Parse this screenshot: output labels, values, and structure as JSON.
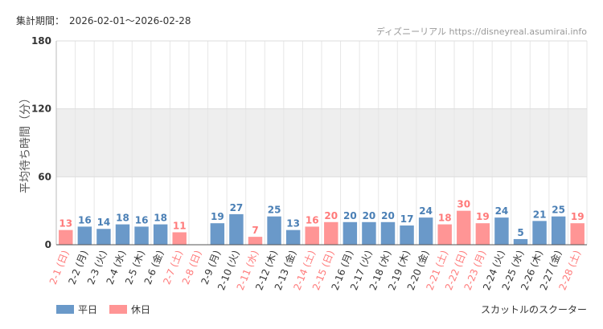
{
  "header": {
    "period_label": "集計期間：",
    "period": "2026-02-01～2026-02-28",
    "source": "ディズニーリアル https://disneyreal.asumirai.info"
  },
  "footer": {
    "attraction": "スカットルのスクーター"
  },
  "legend": {
    "weekday": "平日",
    "holiday": "休日"
  },
  "colors": {
    "weekday": "#6a99c9",
    "holiday": "#ff9595",
    "weekday_text": "#4a7fb5",
    "holiday_text": "#ff7a7a",
    "band": "#eeeeee",
    "grid": "#e6e6e6"
  },
  "chart_data": {
    "type": "bar",
    "ylabel": "平均待ち時間（分）",
    "ylim": [
      0,
      180
    ],
    "yticks": [
      0,
      60,
      120,
      180
    ],
    "band": [
      60,
      120
    ],
    "categories": [
      "2-1 (日)",
      "2-2 (月)",
      "2-3 (火)",
      "2-4 (水)",
      "2-5 (木)",
      "2-6 (金)",
      "2-7 (土)",
      "2-8 (日)",
      "2-9 (月)",
      "2-10 (火)",
      "2-11 (水)",
      "2-12 (木)",
      "2-13 (金)",
      "2-14 (土)",
      "2-15 (日)",
      "2-16 (月)",
      "2-17 (火)",
      "2-18 (水)",
      "2-19 (木)",
      "2-20 (金)",
      "2-21 (土)",
      "2-22 (日)",
      "2-23 (月)",
      "2-24 (火)",
      "2-25 (水)",
      "2-26 (木)",
      "2-27 (金)",
      "2-28 (土)"
    ],
    "values": [
      13,
      16,
      14,
      18,
      16,
      18,
      11,
      null,
      19,
      27,
      7,
      25,
      13,
      16,
      20,
      20,
      20,
      20,
      17,
      24,
      18,
      30,
      19,
      24,
      5,
      21,
      25,
      19
    ],
    "holiday": [
      true,
      false,
      false,
      false,
      false,
      false,
      true,
      true,
      false,
      false,
      true,
      false,
      false,
      true,
      true,
      false,
      false,
      false,
      false,
      false,
      true,
      true,
      true,
      false,
      false,
      false,
      false,
      true
    ],
    "legend_position": "bottom-left"
  }
}
